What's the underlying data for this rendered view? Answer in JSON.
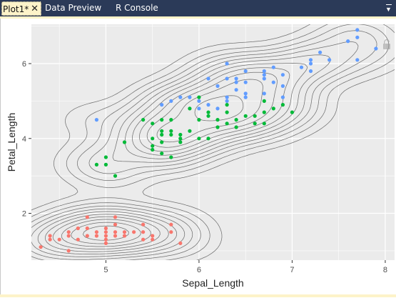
{
  "tabs": [
    {
      "label": "Plot1*",
      "active": true
    },
    {
      "label": "Data Preview",
      "active": false
    },
    {
      "label": "R Console",
      "active": false
    }
  ],
  "colors": {
    "tabbar": "#2b3a58",
    "active_tab": "#fdf3c9",
    "panel": "#ebebeb",
    "grid": "#ffffff",
    "contour": "#707070",
    "setosa": "#f8766d",
    "versicolor": "#00ba38",
    "virginica": "#619cff"
  },
  "icons": [
    "close-icon",
    "panel-menu-icon",
    "lock-icon"
  ],
  "chart_data": {
    "type": "scatter",
    "xlabel": "Sepal_Length",
    "ylabel": "Petal_Length",
    "xlim": [
      4.2,
      8.1
    ],
    "ylim": [
      0.75,
      7.05
    ],
    "x_ticks": [
      5,
      6,
      7,
      8
    ],
    "y_ticks": [
      2,
      4,
      6
    ],
    "x_tick_labels": [
      "5",
      "6",
      "7",
      "8"
    ],
    "y_tick_labels": [
      "2",
      "4",
      "6"
    ],
    "grid": true,
    "legend": "none",
    "overlay": "2d density contours (grey)",
    "series": [
      {
        "color": "#f8766d",
        "points": [
          [
            4.3,
            1.1
          ],
          [
            4.4,
            1.3
          ],
          [
            4.4,
            1.4
          ],
          [
            4.5,
            1.3
          ],
          [
            4.6,
            1.0
          ],
          [
            4.6,
            1.4
          ],
          [
            4.6,
            1.5
          ],
          [
            4.7,
            1.3
          ],
          [
            4.7,
            1.6
          ],
          [
            4.8,
            1.4
          ],
          [
            4.8,
            1.6
          ],
          [
            4.8,
            1.9
          ],
          [
            4.9,
            1.4
          ],
          [
            4.9,
            1.5
          ],
          [
            5.0,
            1.2
          ],
          [
            5.0,
            1.3
          ],
          [
            5.0,
            1.4
          ],
          [
            5.0,
            1.5
          ],
          [
            5.0,
            1.6
          ],
          [
            5.1,
            1.4
          ],
          [
            5.1,
            1.5
          ],
          [
            5.1,
            1.7
          ],
          [
            5.1,
            1.9
          ],
          [
            5.2,
            1.4
          ],
          [
            5.2,
            1.5
          ],
          [
            5.3,
            1.5
          ],
          [
            5.4,
            1.3
          ],
          [
            5.4,
            1.5
          ],
          [
            5.4,
            1.7
          ],
          [
            5.5,
            1.3
          ],
          [
            5.5,
            1.4
          ],
          [
            5.7,
            1.5
          ],
          [
            5.7,
            1.7
          ],
          [
            5.8,
            1.2
          ]
        ]
      },
      {
        "color": "#00ba38",
        "points": [
          [
            4.9,
            3.3
          ],
          [
            5.0,
            3.3
          ],
          [
            5.0,
            3.5
          ],
          [
            5.1,
            3.0
          ],
          [
            5.2,
            3.9
          ],
          [
            5.4,
            4.5
          ],
          [
            5.5,
            3.7
          ],
          [
            5.5,
            3.8
          ],
          [
            5.5,
            4.0
          ],
          [
            5.5,
            4.4
          ],
          [
            5.6,
            3.6
          ],
          [
            5.6,
            3.9
          ],
          [
            5.6,
            4.1
          ],
          [
            5.6,
            4.2
          ],
          [
            5.6,
            4.5
          ],
          [
            5.7,
            3.5
          ],
          [
            5.7,
            4.1
          ],
          [
            5.7,
            4.2
          ],
          [
            5.7,
            4.5
          ],
          [
            5.8,
            3.9
          ],
          [
            5.8,
            4.0
          ],
          [
            5.8,
            4.1
          ],
          [
            5.9,
            4.2
          ],
          [
            5.9,
            4.8
          ],
          [
            6.0,
            4.0
          ],
          [
            6.0,
            4.5
          ],
          [
            6.0,
            5.1
          ],
          [
            6.1,
            4.0
          ],
          [
            6.1,
            4.6
          ],
          [
            6.1,
            4.7
          ],
          [
            6.2,
            4.3
          ],
          [
            6.2,
            4.5
          ],
          [
            6.3,
            4.4
          ],
          [
            6.3,
            4.7
          ],
          [
            6.3,
            4.9
          ],
          [
            6.4,
            4.3
          ],
          [
            6.4,
            4.5
          ],
          [
            6.5,
            4.6
          ],
          [
            6.6,
            4.4
          ],
          [
            6.6,
            4.6
          ],
          [
            6.7,
            4.4
          ],
          [
            6.7,
            4.7
          ],
          [
            6.7,
            5.0
          ],
          [
            6.8,
            4.8
          ],
          [
            6.9,
            4.9
          ],
          [
            7.0,
            4.7
          ]
        ]
      },
      {
        "color": "#619cff",
        "points": [
          [
            4.9,
            4.5
          ],
          [
            5.6,
            4.9
          ],
          [
            5.7,
            5.0
          ],
          [
            5.8,
            5.1
          ],
          [
            5.9,
            5.1
          ],
          [
            6.0,
            4.8
          ],
          [
            6.0,
            5.0
          ],
          [
            6.1,
            4.9
          ],
          [
            6.1,
            5.6
          ],
          [
            6.2,
            4.8
          ],
          [
            6.2,
            5.4
          ],
          [
            6.3,
            5.0
          ],
          [
            6.3,
            5.1
          ],
          [
            6.3,
            5.6
          ],
          [
            6.3,
            6.0
          ],
          [
            6.4,
            5.3
          ],
          [
            6.4,
            5.5
          ],
          [
            6.4,
            5.6
          ],
          [
            6.5,
            5.1
          ],
          [
            6.5,
            5.2
          ],
          [
            6.5,
            5.5
          ],
          [
            6.5,
            5.8
          ],
          [
            6.7,
            5.2
          ],
          [
            6.7,
            5.6
          ],
          [
            6.7,
            5.7
          ],
          [
            6.7,
            5.8
          ],
          [
            6.8,
            5.5
          ],
          [
            6.8,
            5.9
          ],
          [
            6.9,
            5.1
          ],
          [
            6.9,
            5.4
          ],
          [
            6.9,
            5.7
          ],
          [
            7.1,
            5.9
          ],
          [
            7.2,
            5.8
          ],
          [
            7.2,
            6.0
          ],
          [
            7.2,
            6.1
          ],
          [
            7.3,
            6.3
          ],
          [
            7.4,
            6.1
          ],
          [
            7.6,
            6.6
          ],
          [
            7.7,
            6.1
          ],
          [
            7.7,
            6.7
          ],
          [
            7.7,
            6.9
          ],
          [
            7.9,
            6.4
          ]
        ]
      }
    ]
  }
}
